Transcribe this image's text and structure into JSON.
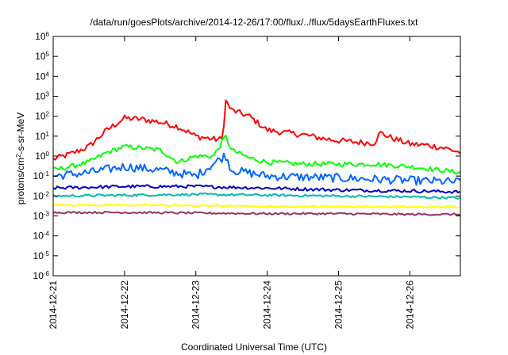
{
  "chart_data": {
    "type": "line",
    "title": "/data/run/goesPlots/archive/2014-12-26/17:00/flux/../flux/5daysEarthFluxes.txt",
    "xlabel": "Coordinated Universal Time (UTC)",
    "ylabel_parts": [
      "protons/cm",
      "2",
      "-s-sr-MeV"
    ],
    "yscale": "log",
    "ylim": [
      1e-06,
      1000000.0
    ],
    "y_ticks": [
      {
        "base": "10",
        "exp": "-6",
        "value": 1e-06
      },
      {
        "base": "10",
        "exp": "-5",
        "value": 1e-05
      },
      {
        "base": "10",
        "exp": "-4",
        "value": 0.0001
      },
      {
        "base": "10",
        "exp": "-3",
        "value": 0.001
      },
      {
        "base": "10",
        "exp": "-2",
        "value": 0.01
      },
      {
        "base": "10",
        "exp": "-1",
        "value": 0.1
      },
      {
        "base": "10",
        "exp": "0",
        "value": 1
      },
      {
        "base": "10",
        "exp": "1",
        "value": 10.0
      },
      {
        "base": "10",
        "exp": "2",
        "value": 100.0
      },
      {
        "base": "10",
        "exp": "3",
        "value": 1000.0
      },
      {
        "base": "10",
        "exp": "4",
        "value": 10000.0
      },
      {
        "base": "10",
        "exp": "5",
        "value": 100000.0
      },
      {
        "base": "10",
        "exp": "6",
        "value": 1000000.0
      }
    ],
    "x_ticks": [
      "2014-12-21",
      "2014-12-22",
      "2014-12-23",
      "2014-12-24",
      "2014-12-25",
      "2014-12-26"
    ],
    "xlim": [
      "2014-12-21T00:00",
      "2014-12-26T17:00"
    ],
    "grid": false,
    "legend": "none",
    "series": [
      {
        "color": "#ff0000",
        "x": [
          "2014-12-21T00:00",
          "2014-12-21T06:00",
          "2014-12-21T12:00",
          "2014-12-21T18:00",
          "2014-12-22T00:00",
          "2014-12-22T06:00",
          "2014-12-22T12:00",
          "2014-12-22T18:00",
          "2014-12-23T00:00",
          "2014-12-23T06:00",
          "2014-12-23T09:00",
          "2014-12-23T10:00",
          "2014-12-23T12:00",
          "2014-12-23T18:00",
          "2014-12-24T00:00",
          "2014-12-24T06:00",
          "2014-12-24T12:00",
          "2014-12-24T18:00",
          "2014-12-25T00:00",
          "2014-12-25T06:00",
          "2014-12-25T12:00",
          "2014-12-25T14:00",
          "2014-12-25T18:00",
          "2014-12-26T00:00",
          "2014-12-26T06:00",
          "2014-12-26T12:00",
          "2014-12-26T17:00"
        ],
        "y": [
          0.7,
          1.3,
          3,
          20,
          80,
          70,
          50,
          30,
          10,
          7,
          7,
          600,
          200,
          100,
          20,
          15,
          12,
          8,
          6,
          5,
          4.5,
          15,
          8,
          4,
          3.5,
          2.5,
          1.5
        ]
      },
      {
        "color": "#00ff00",
        "x": [
          "2014-12-21T00:00",
          "2014-12-21T06:00",
          "2014-12-21T12:00",
          "2014-12-21T18:00",
          "2014-12-22T00:00",
          "2014-12-22T06:00",
          "2014-12-22T12:00",
          "2014-12-22T18:00",
          "2014-12-23T00:00",
          "2014-12-23T06:00",
          "2014-12-23T10:00",
          "2014-12-23T12:00",
          "2014-12-23T18:00",
          "2014-12-24T00:00",
          "2014-12-24T12:00",
          "2014-12-25T00:00",
          "2014-12-25T12:00",
          "2014-12-26T00:00",
          "2014-12-26T17:00"
        ],
        "y": [
          0.2,
          0.3,
          0.5,
          1.5,
          3,
          2.5,
          2,
          0.5,
          1,
          1,
          10,
          2,
          0.8,
          0.5,
          0.4,
          0.4,
          0.4,
          0.3,
          0.15
        ]
      },
      {
        "color": "#0066ff",
        "x": [
          "2014-12-21T00:00",
          "2014-12-21T12:00",
          "2014-12-22T00:00",
          "2014-12-22T12:00",
          "2014-12-23T00:00",
          "2014-12-23T10:00",
          "2014-12-23T12:00",
          "2014-12-24T00:00",
          "2014-12-25T00:00",
          "2014-12-26T00:00",
          "2014-12-26T17:00"
        ],
        "y": [
          0.1,
          0.15,
          0.3,
          0.2,
          0.1,
          1.1,
          0.2,
          0.1,
          0.08,
          0.06,
          0.05
        ]
      },
      {
        "color": "#0000cc",
        "x": [
          "2014-12-21T00:00",
          "2014-12-22T00:00",
          "2014-12-23T00:00",
          "2014-12-24T00:00",
          "2014-12-25T00:00",
          "2014-12-26T00:00",
          "2014-12-26T17:00"
        ],
        "y": [
          0.025,
          0.03,
          0.03,
          0.025,
          0.02,
          0.018,
          0.016
        ]
      },
      {
        "color": "#00bbaa",
        "x": [
          "2014-12-21T00:00",
          "2014-12-22T00:00",
          "2014-12-23T00:00",
          "2014-12-24T00:00",
          "2014-12-25T00:00",
          "2014-12-26T00:00",
          "2014-12-26T17:00"
        ],
        "y": [
          0.01,
          0.011,
          0.012,
          0.011,
          0.01,
          0.009,
          0.008
        ]
      },
      {
        "color": "#ffff00",
        "x": [
          "2014-12-21T00:00",
          "2014-12-22T00:00",
          "2014-12-23T00:00",
          "2014-12-24T00:00",
          "2014-12-25T00:00",
          "2014-12-26T00:00",
          "2014-12-26T17:00"
        ],
        "y": [
          0.0035,
          0.0035,
          0.0033,
          0.003,
          0.003,
          0.0028,
          0.0028
        ]
      },
      {
        "color": "#993366",
        "x": [
          "2014-12-21T00:00",
          "2014-12-22T00:00",
          "2014-12-23T00:00",
          "2014-12-24T00:00",
          "2014-12-25T00:00",
          "2014-12-26T00:00",
          "2014-12-26T17:00"
        ],
        "y": [
          0.0015,
          0.0015,
          0.0014,
          0.0013,
          0.0013,
          0.0012,
          0.0012
        ]
      }
    ]
  }
}
